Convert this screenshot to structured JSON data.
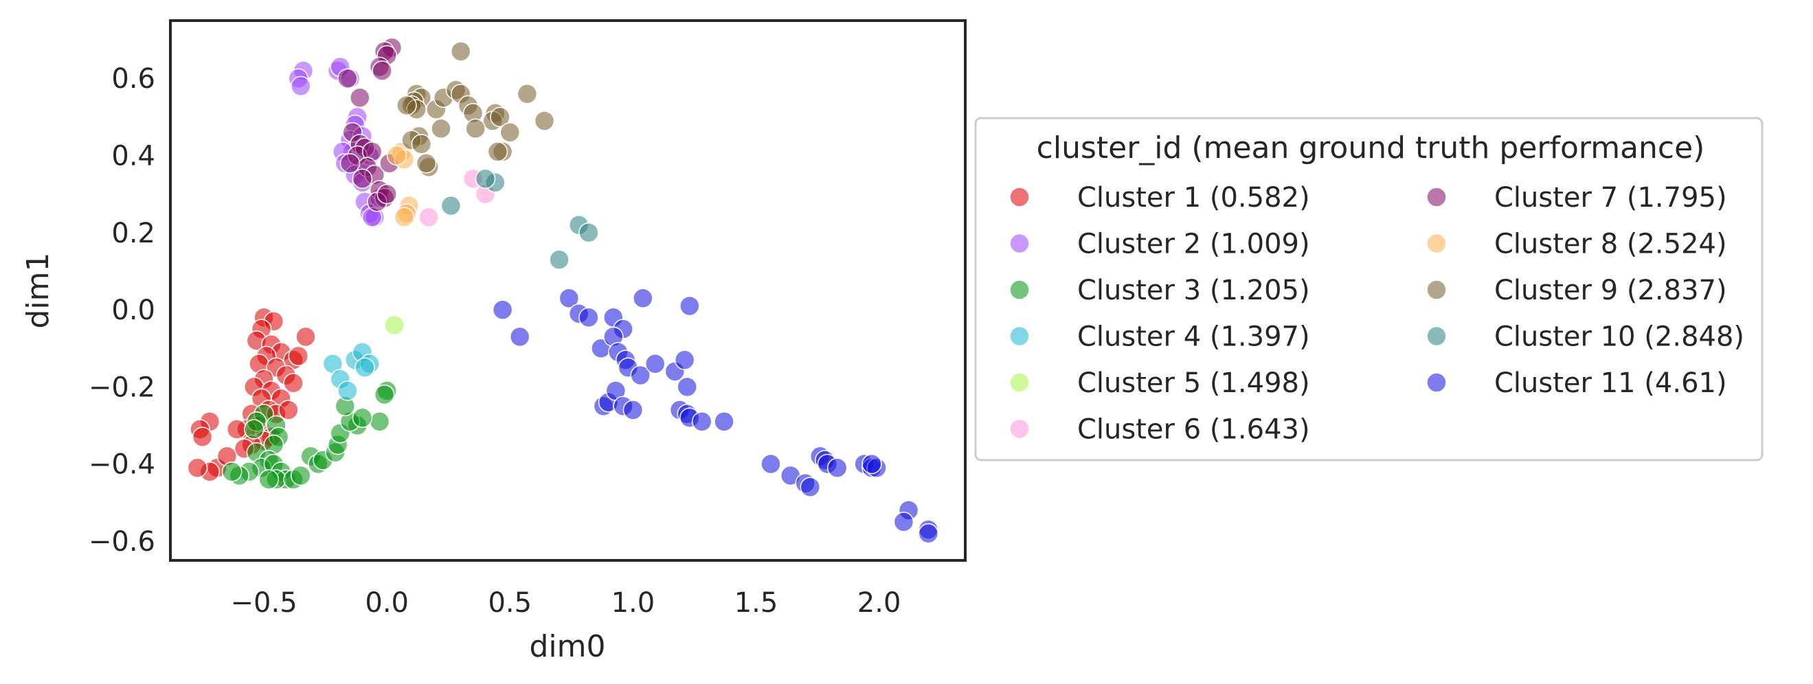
{
  "chart_data": {
    "type": "scatter",
    "xlabel": "dim0",
    "ylabel": "dim1",
    "xlim": [
      -0.88,
      2.35
    ],
    "ylim": [
      -0.65,
      0.75
    ],
    "xticks": [
      -0.5,
      0.0,
      0.5,
      1.0,
      1.5,
      2.0
    ],
    "yticks": [
      -0.6,
      -0.4,
      -0.2,
      0.0,
      0.2,
      0.4,
      0.6
    ],
    "xtick_labels": [
      "−0.5",
      "0.0",
      "0.5",
      "1.0",
      "1.5",
      "2.0"
    ],
    "ytick_labels": [
      "−0.6",
      "−0.4",
      "−0.2",
      "0.0",
      "0.2",
      "0.4",
      "0.6"
    ],
    "grid": false,
    "legend": {
      "title": "cluster_id (mean ground truth performance)",
      "placement": "right-outside",
      "columns": 2
    },
    "series": [
      {
        "name": "Cluster 1 (0.582)",
        "color": "#dd0000",
        "points": [
          [
            -0.5,
            -0.02
          ],
          [
            -0.46,
            -0.03
          ],
          [
            -0.51,
            -0.05
          ],
          [
            -0.53,
            -0.08
          ],
          [
            -0.47,
            -0.09
          ],
          [
            -0.43,
            -0.11
          ],
          [
            -0.49,
            -0.12
          ],
          [
            -0.52,
            -0.14
          ],
          [
            -0.45,
            -0.15
          ],
          [
            -0.38,
            -0.13
          ],
          [
            -0.36,
            -0.12
          ],
          [
            -0.33,
            -0.07
          ],
          [
            -0.41,
            -0.17
          ],
          [
            -0.5,
            -0.18
          ],
          [
            -0.54,
            -0.2
          ],
          [
            -0.47,
            -0.21
          ],
          [
            -0.43,
            -0.23
          ],
          [
            -0.51,
            -0.23
          ],
          [
            -0.38,
            -0.19
          ],
          [
            -0.48,
            -0.26
          ],
          [
            -0.55,
            -0.27
          ],
          [
            -0.45,
            -0.27
          ],
          [
            -0.4,
            -0.26
          ],
          [
            -0.52,
            -0.3
          ],
          [
            -0.57,
            -0.31
          ],
          [
            -0.61,
            -0.31
          ],
          [
            -0.47,
            -0.33
          ],
          [
            -0.5,
            -0.34
          ],
          [
            -0.55,
            -0.35
          ],
          [
            -0.58,
            -0.36
          ],
          [
            -0.72,
            -0.29
          ],
          [
            -0.76,
            -0.31
          ],
          [
            -0.75,
            -0.33
          ],
          [
            -0.69,
            -0.41
          ],
          [
            -0.72,
            -0.42
          ],
          [
            -0.77,
            -0.41
          ],
          [
            -0.65,
            -0.38
          ]
        ]
      },
      {
        "name": "Cluster 2 (1.009)",
        "color": "#9a44ff",
        "points": [
          [
            -0.34,
            0.62
          ],
          [
            -0.36,
            0.6
          ],
          [
            -0.35,
            0.58
          ],
          [
            -0.2,
            0.62
          ],
          [
            -0.19,
            0.63
          ],
          [
            -0.15,
            0.6
          ],
          [
            -0.12,
            0.5
          ],
          [
            -0.13,
            0.48
          ],
          [
            -0.15,
            0.44
          ],
          [
            -0.1,
            0.45
          ],
          [
            -0.14,
            0.41
          ],
          [
            -0.18,
            0.41
          ],
          [
            -0.17,
            0.38
          ],
          [
            -0.11,
            0.37
          ],
          [
            -0.13,
            0.35
          ],
          [
            -0.1,
            0.33
          ],
          [
            -0.09,
            0.28
          ],
          [
            -0.07,
            0.25
          ],
          [
            -0.05,
            0.24
          ],
          [
            -0.03,
            0.29
          ],
          [
            -0.07,
            0.4
          ],
          [
            -0.06,
            0.24
          ]
        ]
      },
      {
        "name": "Cluster 3 (1.205)",
        "color": "#00930c",
        "points": [
          [
            -0.5,
            -0.27
          ],
          [
            -0.53,
            -0.29
          ],
          [
            -0.54,
            -0.31
          ],
          [
            -0.45,
            -0.3
          ],
          [
            -0.44,
            -0.33
          ],
          [
            -0.46,
            -0.35
          ],
          [
            -0.53,
            -0.37
          ],
          [
            -0.48,
            -0.39
          ],
          [
            -0.51,
            -0.41
          ],
          [
            -0.46,
            -0.4
          ],
          [
            -0.43,
            -0.42
          ],
          [
            -0.41,
            -0.44
          ],
          [
            -0.45,
            -0.44
          ],
          [
            -0.48,
            -0.44
          ],
          [
            -0.56,
            -0.42
          ],
          [
            -0.6,
            -0.43
          ],
          [
            -0.63,
            -0.42
          ],
          [
            -0.38,
            -0.44
          ],
          [
            -0.35,
            -0.43
          ],
          [
            -0.31,
            -0.38
          ],
          [
            -0.28,
            -0.4
          ],
          [
            -0.26,
            -0.39
          ],
          [
            -0.21,
            -0.37
          ],
          [
            -0.2,
            -0.35
          ],
          [
            -0.19,
            -0.32
          ],
          [
            -0.12,
            -0.3
          ],
          [
            -0.15,
            -0.29
          ],
          [
            -0.03,
            -0.29
          ],
          [
            0.0,
            -0.21
          ],
          [
            -0.01,
            -0.22
          ],
          [
            -0.17,
            -0.25
          ],
          [
            -0.1,
            -0.28
          ]
        ]
      },
      {
        "name": "Cluster 4 (1.397)",
        "color": "#17b6cf",
        "points": [
          [
            -0.22,
            -0.14
          ],
          [
            -0.19,
            -0.18
          ],
          [
            -0.13,
            -0.13
          ],
          [
            -0.1,
            -0.11
          ],
          [
            -0.07,
            -0.14
          ],
          [
            -0.09,
            -0.15
          ],
          [
            -0.16,
            -0.21
          ]
        ]
      },
      {
        "name": "Cluster 5 (1.498)",
        "color": "#a8f54a",
        "points": [
          [
            0.03,
            -0.04
          ]
        ]
      },
      {
        "name": "Cluster 6 (1.643)",
        "color": "#ff92dc",
        "points": [
          [
            0.35,
            0.34
          ],
          [
            0.4,
            0.3
          ],
          [
            0.17,
            0.24
          ]
        ]
      },
      {
        "name": "Cluster 7 (1.795)",
        "color": "#7e0a62",
        "points": [
          [
            0.02,
            0.68
          ],
          [
            -0.01,
            0.67
          ],
          [
            0.0,
            0.66
          ],
          [
            -0.03,
            0.63
          ],
          [
            -0.02,
            0.62
          ],
          [
            -0.16,
            0.6
          ],
          [
            -0.11,
            0.55
          ],
          [
            -0.14,
            0.46
          ],
          [
            -0.11,
            0.43
          ],
          [
            -0.09,
            0.42
          ],
          [
            -0.12,
            0.4
          ],
          [
            -0.06,
            0.41
          ],
          [
            -0.08,
            0.37
          ],
          [
            -0.05,
            0.35
          ],
          [
            -0.1,
            0.34
          ],
          [
            -0.03,
            0.31
          ],
          [
            -0.01,
            0.29
          ],
          [
            -0.04,
            0.28
          ],
          [
            0.0,
            0.3
          ],
          [
            0.01,
            0.38
          ],
          [
            -0.15,
            0.38
          ]
        ]
      },
      {
        "name": "Cluster 8 (2.524)",
        "color": "#ffae4c",
        "points": [
          [
            0.06,
            0.41
          ],
          [
            0.07,
            0.39
          ],
          [
            0.04,
            0.4
          ],
          [
            0.09,
            0.27
          ],
          [
            0.08,
            0.25
          ],
          [
            0.07,
            0.24
          ]
        ]
      },
      {
        "name": "Cluster 9 (2.837)",
        "color": "#775c2c",
        "points": [
          [
            0.3,
            0.67
          ],
          [
            0.12,
            0.56
          ],
          [
            0.14,
            0.55
          ],
          [
            0.11,
            0.54
          ],
          [
            0.1,
            0.53
          ],
          [
            0.12,
            0.52
          ],
          [
            0.08,
            0.53
          ],
          [
            0.2,
            0.52
          ],
          [
            0.23,
            0.55
          ],
          [
            0.28,
            0.57
          ],
          [
            0.3,
            0.56
          ],
          [
            0.33,
            0.53
          ],
          [
            0.35,
            0.51
          ],
          [
            0.44,
            0.51
          ],
          [
            0.43,
            0.49
          ],
          [
            0.46,
            0.5
          ],
          [
            0.57,
            0.56
          ],
          [
            0.64,
            0.49
          ],
          [
            0.22,
            0.47
          ],
          [
            0.36,
            0.47
          ],
          [
            0.5,
            0.46
          ],
          [
            0.13,
            0.45
          ],
          [
            0.1,
            0.44
          ],
          [
            0.14,
            0.43
          ],
          [
            0.47,
            0.41
          ],
          [
            0.45,
            0.41
          ],
          [
            0.17,
            0.37
          ],
          [
            0.16,
            0.38
          ]
        ]
      },
      {
        "name": "Cluster 10 (2.848)",
        "color": "#2a7f7f",
        "points": [
          [
            0.78,
            0.22
          ],
          [
            0.82,
            0.2
          ],
          [
            0.7,
            0.13
          ],
          [
            0.44,
            0.33
          ],
          [
            0.4,
            0.34
          ],
          [
            0.26,
            0.27
          ]
        ]
      },
      {
        "name": "Cluster 11 (4.61)",
        "color": "#1111dd",
        "points": [
          [
            0.47,
            0.0
          ],
          [
            0.54,
            -0.07
          ],
          [
            0.74,
            0.03
          ],
          [
            0.78,
            -0.01
          ],
          [
            0.82,
            -0.02
          ],
          [
            0.92,
            -0.02
          ],
          [
            0.96,
            -0.05
          ],
          [
            1.04,
            0.03
          ],
          [
            1.23,
            0.01
          ],
          [
            0.87,
            -0.1
          ],
          [
            0.92,
            -0.07
          ],
          [
            0.94,
            -0.11
          ],
          [
            0.97,
            -0.13
          ],
          [
            0.98,
            -0.15
          ],
          [
            1.03,
            -0.17
          ],
          [
            1.09,
            -0.14
          ],
          [
            1.17,
            -0.16
          ],
          [
            1.21,
            -0.13
          ],
          [
            1.22,
            -0.2
          ],
          [
            0.88,
            -0.25
          ],
          [
            0.9,
            -0.24
          ],
          [
            0.93,
            -0.21
          ],
          [
            0.96,
            -0.25
          ],
          [
            1.0,
            -0.26
          ],
          [
            1.19,
            -0.26
          ],
          [
            1.22,
            -0.27
          ],
          [
            1.23,
            -0.28
          ],
          [
            1.28,
            -0.29
          ],
          [
            1.37,
            -0.29
          ],
          [
            1.56,
            -0.4
          ],
          [
            1.64,
            -0.43
          ],
          [
            1.7,
            -0.45
          ],
          [
            1.72,
            -0.46
          ],
          [
            1.76,
            -0.38
          ],
          [
            1.78,
            -0.39
          ],
          [
            1.79,
            -0.4
          ],
          [
            1.83,
            -0.41
          ],
          [
            1.94,
            -0.4
          ],
          [
            1.97,
            -0.41
          ],
          [
            1.99,
            -0.41
          ],
          [
            1.97,
            -0.4
          ],
          [
            2.12,
            -0.52
          ],
          [
            2.1,
            -0.55
          ],
          [
            2.2,
            -0.57
          ],
          [
            2.2,
            -0.58
          ]
        ]
      }
    ]
  }
}
